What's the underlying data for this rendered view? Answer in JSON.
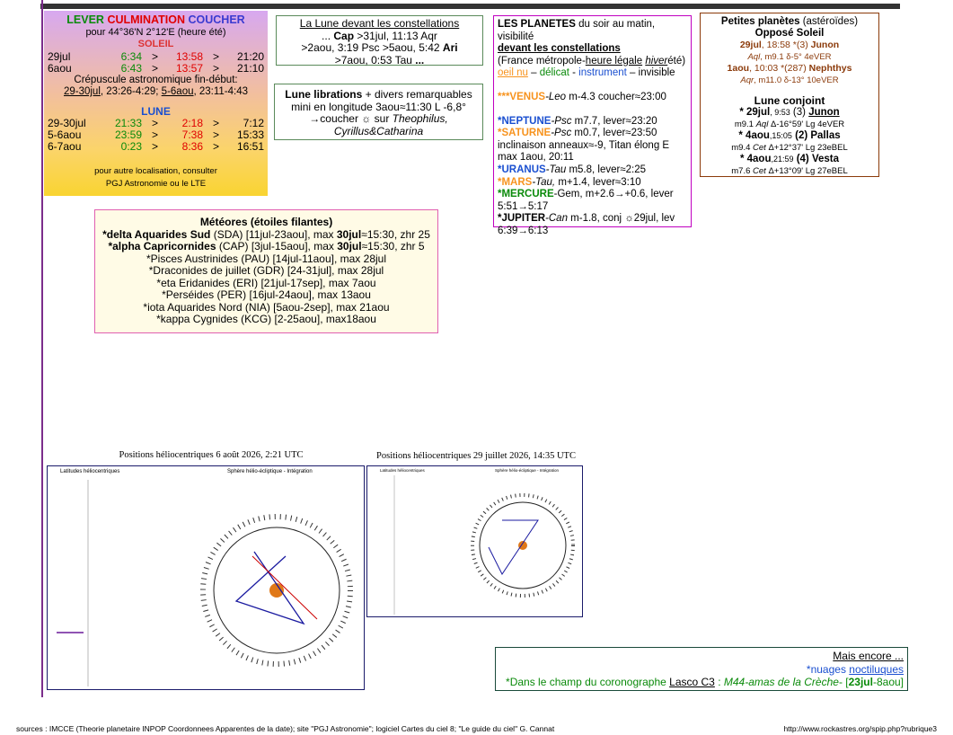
{
  "soleil_box": {
    "head": [
      "LEVER",
      "CULMINATION",
      "COUCHER"
    ],
    "location": "pour 44°36'N  2°12'E (heure été)",
    "soleil": "SOLEIL",
    "sun_rows": [
      [
        "29jul",
        "6:34",
        ">",
        "13:58",
        ">",
        "21:20"
      ],
      [
        "6aou",
        "6:43",
        ">",
        "13:57",
        ">",
        "21:10"
      ]
    ],
    "crepuscule": "Crépuscule astronomique fin-début:",
    "crep": [
      "29-30jul",
      ", 23:26-4:29; ",
      "5-6aou",
      ", 23:11-4:43"
    ],
    "lune": "LUNE",
    "moon_rows": [
      [
        "29-30jul",
        "21:33",
        ">",
        "2:18",
        ">",
        "7:12"
      ],
      [
        "5-6aou",
        "23:59",
        ">",
        "7:38",
        ">",
        "15:33"
      ],
      [
        "6-7aou",
        "0:23",
        ">",
        "8:36",
        ">",
        "16:51"
      ]
    ],
    "note": [
      "pour autre localisation, consulter",
      "PGJ Astronomie ou le LTE"
    ]
  },
  "lune_constellations": {
    "title": "La Lune devant les constellations",
    "lines": [
      [
        "... ",
        "Cap",
        " >31jul, 11:13 ",
        "Aqr"
      ],
      [
        ">2aou, 3:19 ",
        "Psc",
        " >5aou, 5:42 ",
        "Ari"
      ],
      [
        ">7aou, 0:53 ",
        "Tau",
        " ..."
      ]
    ]
  },
  "librations": {
    "lines": [
      [
        "Lune librations",
        " + divers remarquables"
      ],
      [
        "mini en longitude 3aou≈11:30 L -6,8°"
      ],
      [
        "→coucher ☼ sur ",
        "Theophilus,"
      ],
      [
        "Cyrillus&Catharina"
      ]
    ]
  },
  "planetes": {
    "lines": [
      [
        "LES PLANETES",
        " du soir au matin, visibilité"
      ],
      [
        "devant les constellations"
      ],
      [
        "(France métropole-",
        "heure légale",
        " ",
        "hiver",
        "été)"
      ],
      [
        "oeil nu",
        " – ",
        "délicat",
        " - ",
        "instrument",
        " – invisible"
      ],
      [
        "***VENUS",
        "-Leo",
        " m-4.3 coucher≈23:00"
      ],
      [
        "*NEPTUNE",
        "-Psc",
        " m7.7, lever≈23:20"
      ],
      [
        "*SATURNE",
        "-Psc",
        " m0.7, lever≈23:50"
      ],
      [
        "inclinaison anneaux≈-9, Titan élong E max 1aou, 20:11"
      ],
      [
        "*URANUS",
        "-Tau",
        " m5.8, lever≈2:25"
      ],
      [
        "*MARS",
        "-Tau,",
        " m+1.4, lever≈3:10"
      ],
      [
        "*MERCURE",
        "-Gem, m+2.6→+0.6, lever 5:51→5:17"
      ],
      [
        "*JUPITER",
        "-Can",
        " m-1.8, conj ☼29jul, lev 6:39→6:13"
      ]
    ]
  },
  "petites_planetes": {
    "lines": [
      [
        "Petites planètes",
        " (astéroïdes)"
      ],
      [
        "Opposé Soleil"
      ],
      [
        "29jul",
        ", 18:58 *(3) ",
        "Junon"
      ],
      [
        "Aql",
        ", m9.1  δ-5° 4eVER"
      ],
      [
        "1aou",
        ", 10:03 *(287) ",
        "Nephthys"
      ],
      [
        "Aqr",
        ", m11.0  δ-13° 10eVER"
      ],
      [
        "Lune conjoint"
      ],
      [
        "* 29jul",
        ", 9:53",
        " (3) ",
        "Junon"
      ],
      [
        "m9.1 ",
        "Aql",
        " Δ-16°59' Lg 4eVER"
      ],
      [
        "* 4aou",
        ",15:05",
        " (2) Pallas"
      ],
      [
        "m9.4 ",
        "Cet",
        " Δ+12°37' Lg 23eBEL"
      ],
      [
        "* 4aou",
        ",21:59",
        " (4) Vesta"
      ],
      [
        "m7.6 ",
        "Cet",
        " Δ+13°09' Lg 27eBEL"
      ]
    ]
  },
  "meteores": {
    "title": "Météores (étoiles filantes)",
    "lines": [
      [
        "*delta Aquarides Sud",
        " (SDA) [11jul-23aou], max ",
        "30jul",
        "≈15:30, zhr 25"
      ],
      [
        "*alpha Capricornides",
        " (CAP) [3jul-15aou], max ",
        "30jul",
        "≈15:30, zhr 5"
      ],
      [
        "*Pisces Austrinides (PAU) [14jul-11aou], max 28jul"
      ],
      [
        "*Draconides de juillet (GDR) [24-31jul], max 28jul"
      ],
      [
        "*eta Eridanides (ERI) [21jul-17sep], max 7aou"
      ],
      [
        "*Perséides (PER) [16jul-24aou], max 13aou"
      ],
      [
        "*iota Aquarides Nord (NIA) [5aou-2sep], max 21aou"
      ],
      [
        "*kappa Cygnides (KCG) [2-25aou], max18aou"
      ]
    ]
  },
  "charts": [
    {
      "title": "Positions héliocentriques 6 août 2026, 2:21 UTC",
      "left_label": "Latitudes héliocentriques",
      "right_label": "Sphère hélio-écliptique - Intégration"
    },
    {
      "title": "Positions héliocentriques 29 juillet 2026, 14:35 UTC",
      "left_label": "Latitudes héliocentriques",
      "right_label": "Sphère hélio-écliptique - Intégration"
    }
  ],
  "mais_encore": {
    "title": "Mais encore ...",
    "line1": [
      "*nuages ",
      "noctiluques"
    ],
    "line2": [
      "*Dans le champ du coronographe ",
      "Lasco C3",
      " : ",
      "M44-amas de la Crèche",
      "- [",
      "23jul",
      "-8aou]"
    ]
  },
  "footer": {
    "sources": "sources : IMCCE (Theorie planetaire INPOP Coordonnees Apparentes de la date); site \"PGJ Astronomie\"; logiciel  Cartes du ciel 8; \"Le guide du ciel\" G. Cannat",
    "url": "http://www.rockastres.org/spip.php?rubrique3"
  }
}
